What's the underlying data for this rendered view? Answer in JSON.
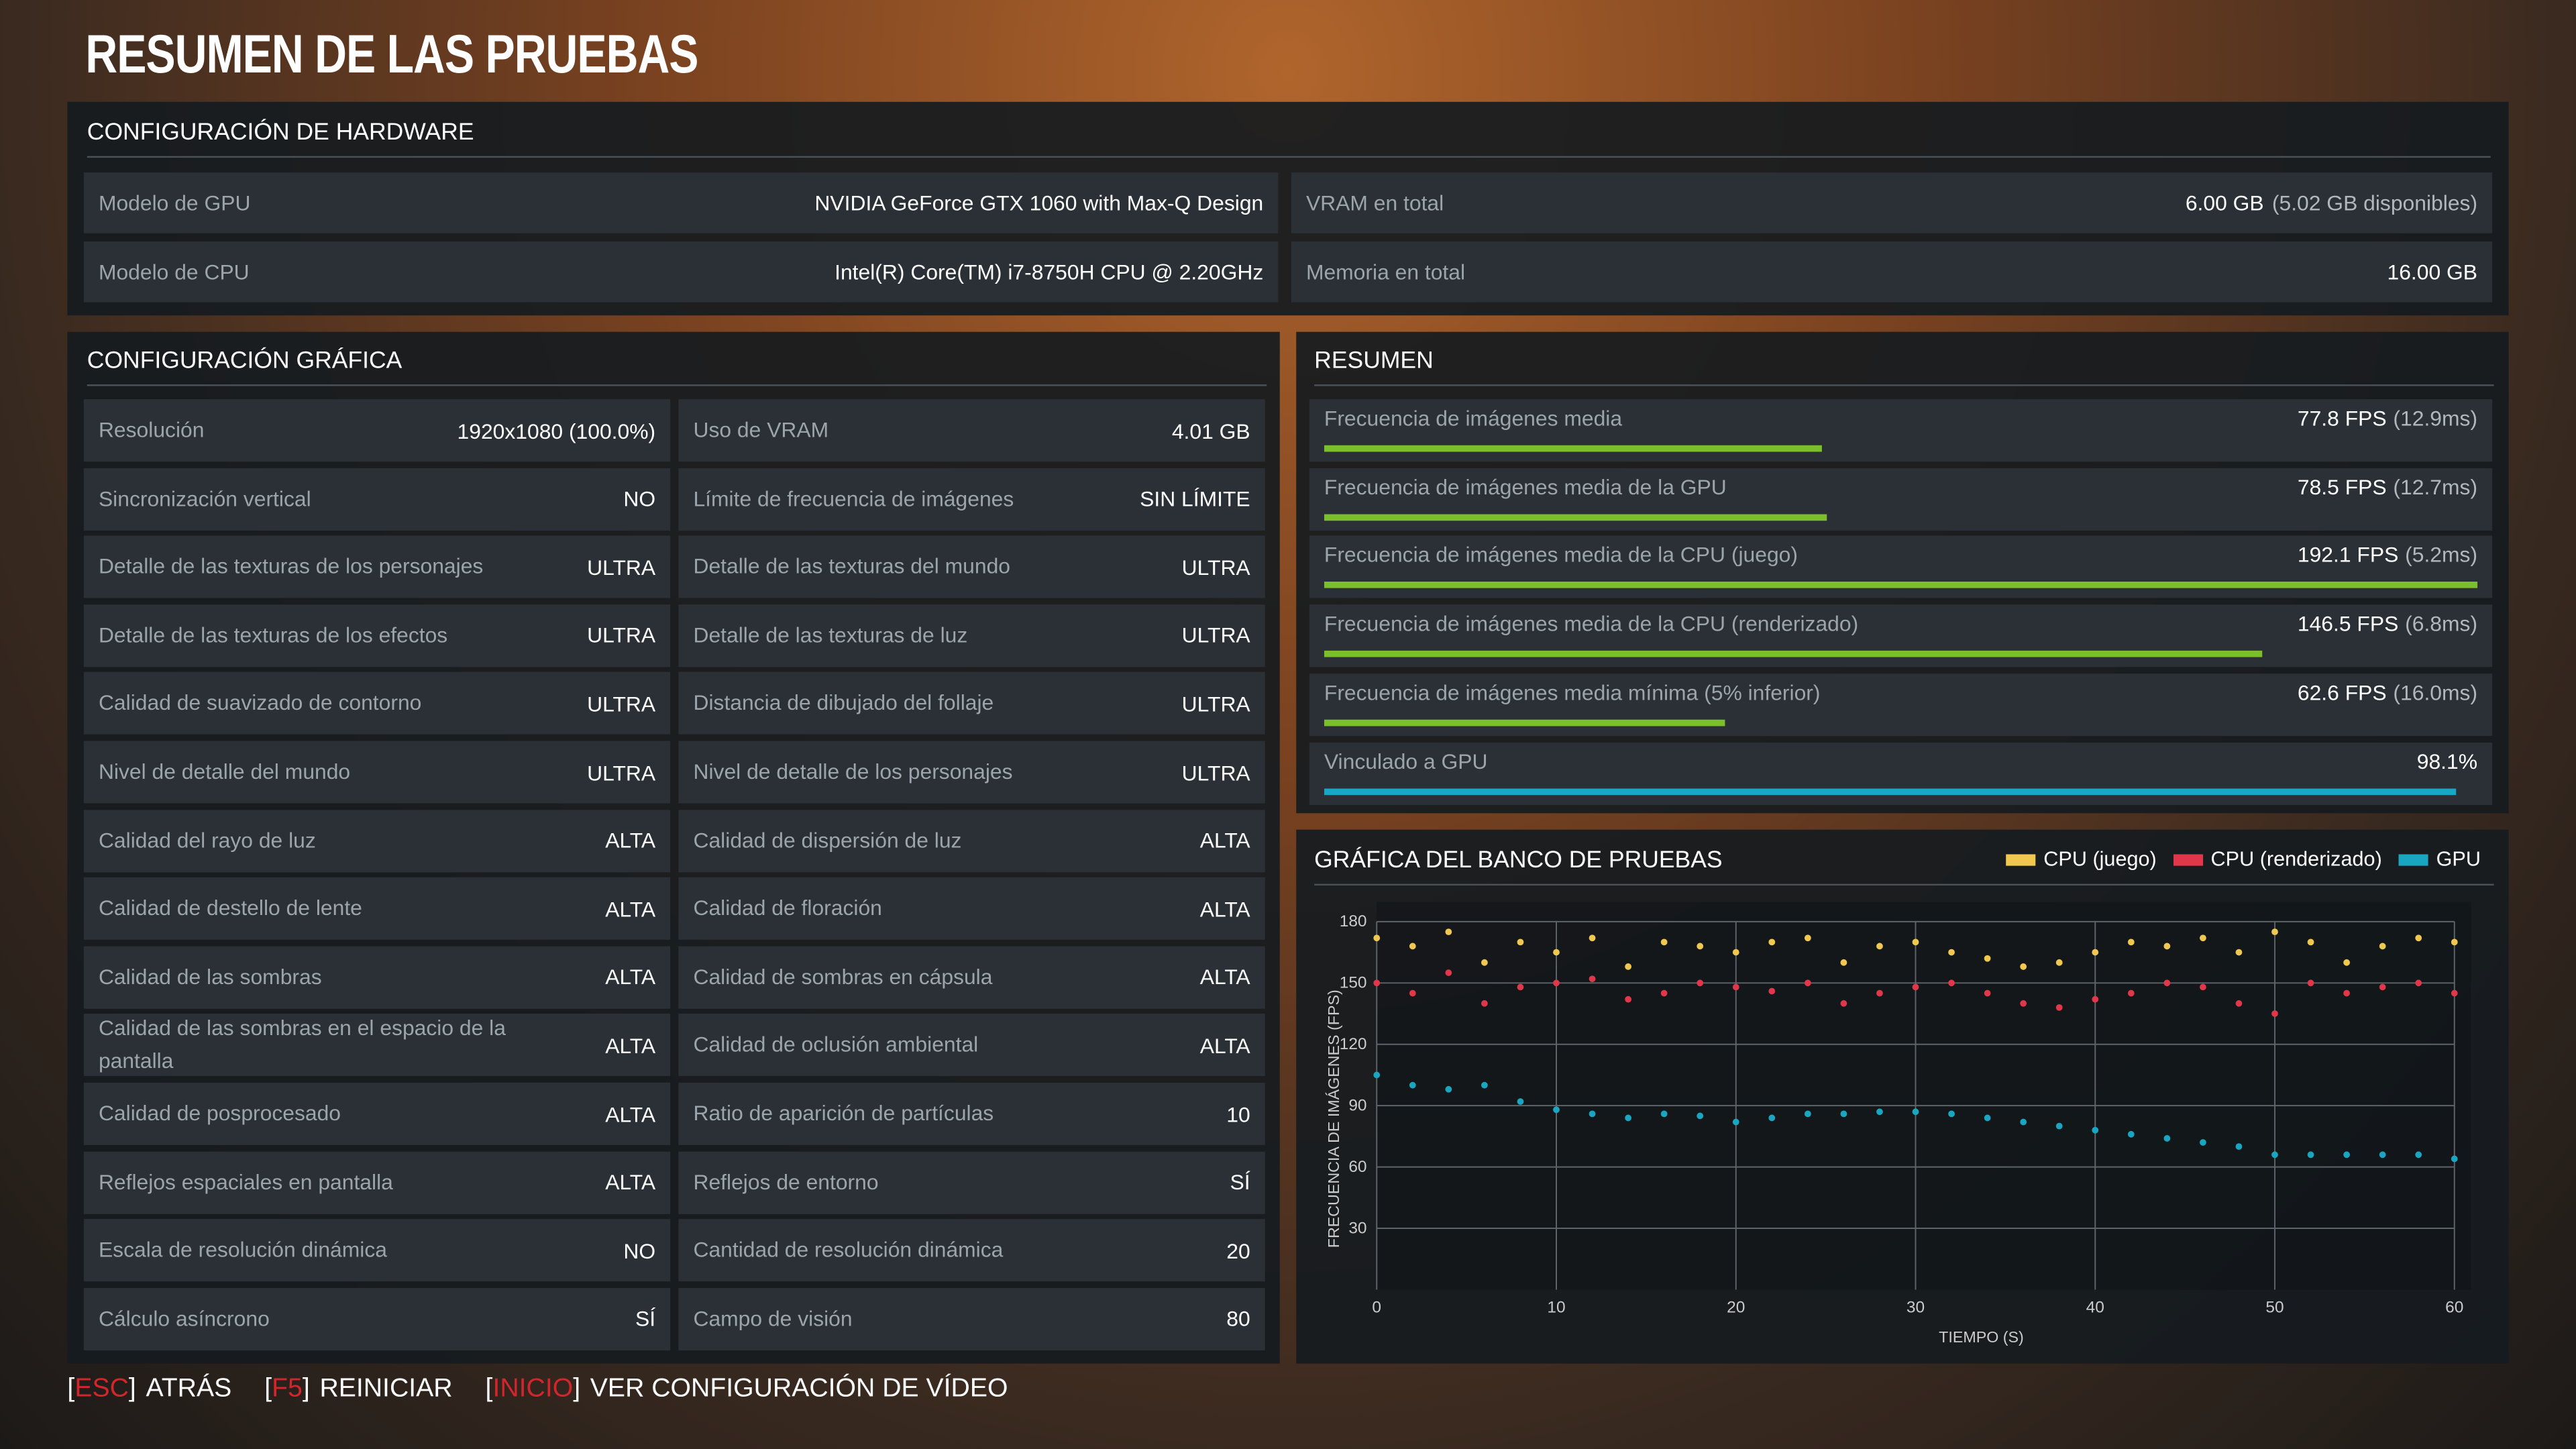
{
  "header": {
    "title": "RESUMEN DE LAS PRUEBAS"
  },
  "hardware": {
    "title": "CONFIGURACIÓN DE HARDWARE",
    "rows": [
      [
        {
          "label": "Modelo de GPU",
          "value": "NVIDIA GeForce GTX 1060 with Max-Q Design"
        },
        {
          "label": "VRAM en total",
          "value": "6.00 GB",
          "note": "(5.02 GB disponibles)"
        }
      ],
      [
        {
          "label": "Modelo de CPU",
          "value": "Intel(R) Core(TM) i7-8750H CPU @ 2.20GHz"
        },
        {
          "label": "Memoria en total",
          "value": "16.00 GB"
        }
      ]
    ]
  },
  "graphics": {
    "title": "CONFIGURACIÓN GRÁFICA",
    "rows": [
      [
        {
          "label": "Resolución",
          "value": "1920x1080 (100.0%)"
        },
        {
          "label": "Uso de VRAM",
          "value": "4.01 GB"
        }
      ],
      [
        {
          "label": "Sincronización vertical",
          "value": "NO"
        },
        {
          "label": "Límite de frecuencia de imágenes",
          "value": "SIN LÍMITE"
        }
      ],
      [
        {
          "label": "Detalle de las texturas de los personajes",
          "value": "ULTRA"
        },
        {
          "label": "Detalle de las texturas del mundo",
          "value": "ULTRA"
        }
      ],
      [
        {
          "label": "Detalle de las texturas de los efectos",
          "value": "ULTRA"
        },
        {
          "label": "Detalle de las texturas de luz",
          "value": "ULTRA"
        }
      ],
      [
        {
          "label": "Calidad de suavizado de contorno",
          "value": "ULTRA"
        },
        {
          "label": "Distancia de dibujado del follaje",
          "value": "ULTRA"
        }
      ],
      [
        {
          "label": "Nivel de detalle del mundo",
          "value": "ULTRA"
        },
        {
          "label": "Nivel de detalle de los personajes",
          "value": "ULTRA"
        }
      ],
      [
        {
          "label": "Calidad del rayo de luz",
          "value": "ALTA"
        },
        {
          "label": "Calidad de dispersión de luz",
          "value": "ALTA"
        }
      ],
      [
        {
          "label": "Calidad de destello de lente",
          "value": "ALTA"
        },
        {
          "label": "Calidad de floración",
          "value": "ALTA"
        }
      ],
      [
        {
          "label": "Calidad de las sombras",
          "value": "ALTA"
        },
        {
          "label": "Calidad de sombras en cápsula",
          "value": "ALTA"
        }
      ],
      [
        {
          "label": "Calidad de las sombras en el espacio de la pantalla",
          "value": "ALTA"
        },
        {
          "label": "Calidad de oclusión ambiental",
          "value": "ALTA"
        }
      ],
      [
        {
          "label": "Calidad de posprocesado",
          "value": "ALTA"
        },
        {
          "label": "Ratio de aparición de partículas",
          "value": 10
        }
      ],
      [
        {
          "label": "Reflejos espaciales en pantalla",
          "value": "ALTA"
        },
        {
          "label": "Reflejos de entorno",
          "value": "SÍ"
        }
      ],
      [
        {
          "label": "Escala de resolución dinámica",
          "value": "NO"
        },
        {
          "label": "Cantidad de resolución dinámica",
          "value": 20
        }
      ],
      [
        {
          "label": "Cálculo asíncrono",
          "value": "SÍ"
        },
        {
          "label": "Campo de visión",
          "value": 80
        }
      ]
    ]
  },
  "summary": {
    "title": "RESUMEN",
    "items": [
      {
        "label": "Frecuencia de imágenes media",
        "value": 77.8,
        "value_label": "77.8 FPS",
        "note": "(12.9ms)",
        "bar_max": 180,
        "color": "#7cbf2c"
      },
      {
        "label": "Frecuencia de imágenes media de la GPU",
        "value": 78.5,
        "value_label": "78.5 FPS",
        "note": "(12.7ms)",
        "bar_max": 180,
        "color": "#7cbf2c"
      },
      {
        "label": "Frecuencia de imágenes media de la CPU (juego)",
        "value": 192.1,
        "value_label": "192.1 FPS",
        "note": "(5.2ms)",
        "bar_max": 180,
        "color": "#7cbf2c"
      },
      {
        "label": "Frecuencia de imágenes media de la CPU (renderizado)",
        "value": 146.5,
        "value_label": "146.5 FPS",
        "note": "(6.8ms)",
        "bar_max": 180,
        "color": "#7cbf2c"
      },
      {
        "label": "Frecuencia de imágenes media mínima (5% inferior)",
        "value": 62.6,
        "value_label": "62.6 FPS",
        "note": "(16.0ms)",
        "bar_max": 180,
        "color": "#7cbf2c"
      },
      {
        "label": "Vinculado a GPU",
        "value": 98.1,
        "value_label": "98.1%",
        "bar_max": 100,
        "color": "#18a7c4"
      }
    ]
  },
  "chart_data": {
    "type": "scatter",
    "title": "GRÁFICA DEL BANCO DE PRUEBAS",
    "x_label": "TIEMPO (S)",
    "y_label": "FRECUENCIA DE IMÁGENES (FPS)",
    "x": [
      0,
      2,
      4,
      6,
      8,
      10,
      12,
      14,
      16,
      18,
      20,
      22,
      24,
      26,
      28,
      30,
      32,
      34,
      36,
      38,
      40,
      42,
      44,
      46,
      48,
      50,
      52,
      54,
      56,
      58,
      60
    ],
    "series": [
      {
        "name": "CPU (juego)",
        "color": "#f0c850",
        "values": [
          172,
          168,
          175,
          160,
          170,
          165,
          172,
          158,
          170,
          168,
          165,
          170,
          172,
          160,
          168,
          170,
          165,
          162,
          158,
          160,
          165,
          170,
          168,
          172,
          165,
          175,
          170,
          160,
          168,
          172,
          170
        ]
      },
      {
        "name": "CPU (renderizado)",
        "color": "#e0384a",
        "values": [
          150,
          145,
          155,
          140,
          148,
          150,
          152,
          142,
          145,
          150,
          148,
          146,
          150,
          140,
          145,
          148,
          150,
          145,
          140,
          138,
          142,
          145,
          150,
          148,
          140,
          135,
          150,
          145,
          148,
          150,
          145
        ]
      },
      {
        "name": "GPU",
        "color": "#1aa6c0",
        "values": [
          105,
          100,
          98,
          100,
          92,
          88,
          86,
          84,
          86,
          85,
          82,
          84,
          86,
          86,
          87,
          87,
          86,
          84,
          82,
          80,
          78,
          76,
          74,
          72,
          70,
          66,
          66,
          66,
          66,
          66,
          64
        ]
      }
    ],
    "xlim": [
      0,
      60
    ],
    "ylim": [
      0,
      180
    ],
    "xticks": [
      0,
      10,
      20,
      30,
      40,
      50,
      60
    ],
    "yticks": [
      30,
      60,
      90,
      120,
      150,
      180
    ],
    "grid": true,
    "legend": "top-right"
  },
  "footer": {
    "actions": [
      {
        "open": "[",
        "key": "ESC",
        "close": "]",
        "label": "ATRÁS"
      },
      {
        "open": "[",
        "key": "F5",
        "close": "]",
        "label": "REINICIAR"
      },
      {
        "open": "[",
        "key": "INICIO",
        "close": "]",
        "label": "VER CONFIGURACIÓN DE VÍDEO"
      }
    ]
  }
}
